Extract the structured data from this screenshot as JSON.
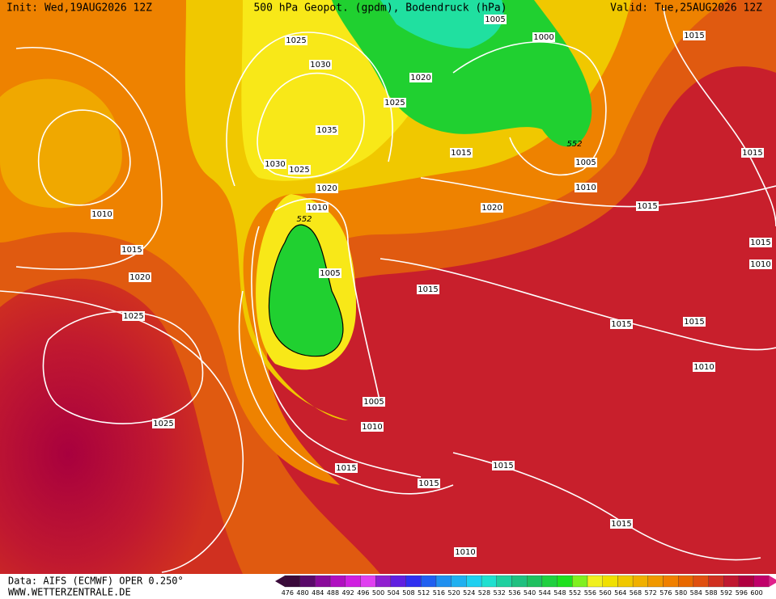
{
  "header": {
    "init": "Init: Wed,19AUG2026 12Z",
    "title": "500 hPa Geopot. (gpdm), Bodendruck (hPa)",
    "valid": "Valid: Tue,25AUG2026 12Z"
  },
  "isobar_labels": [
    "1005",
    "1025",
    "1000",
    "1015",
    "1030",
    "1020",
    "1025",
    "1035",
    "552",
    "1015",
    "1015",
    "1005",
    "1030",
    "1025",
    "1010",
    "1020",
    "1010",
    "552",
    "1010",
    "1020",
    "1015",
    "1015",
    "1015",
    "1010",
    "1005",
    "1020",
    "1015",
    "1025",
    "1015",
    "1015",
    "1010",
    "1005",
    "1025",
    "1010",
    "1015",
    "1015",
    "1015",
    "1015",
    "1010"
  ],
  "footer": {
    "source": "Data: AIFS (ECMWF) OPER 0.250°",
    "site": "WWW.WETTERZENTRALE.DE"
  },
  "colorbar": {
    "labels": [
      476,
      480,
      484,
      488,
      492,
      496,
      500,
      504,
      508,
      512,
      516,
      520,
      524,
      528,
      532,
      536,
      540,
      544,
      548,
      552,
      556,
      560,
      564,
      568,
      572,
      576,
      580,
      584,
      588,
      592,
      596,
      600
    ]
  }
}
